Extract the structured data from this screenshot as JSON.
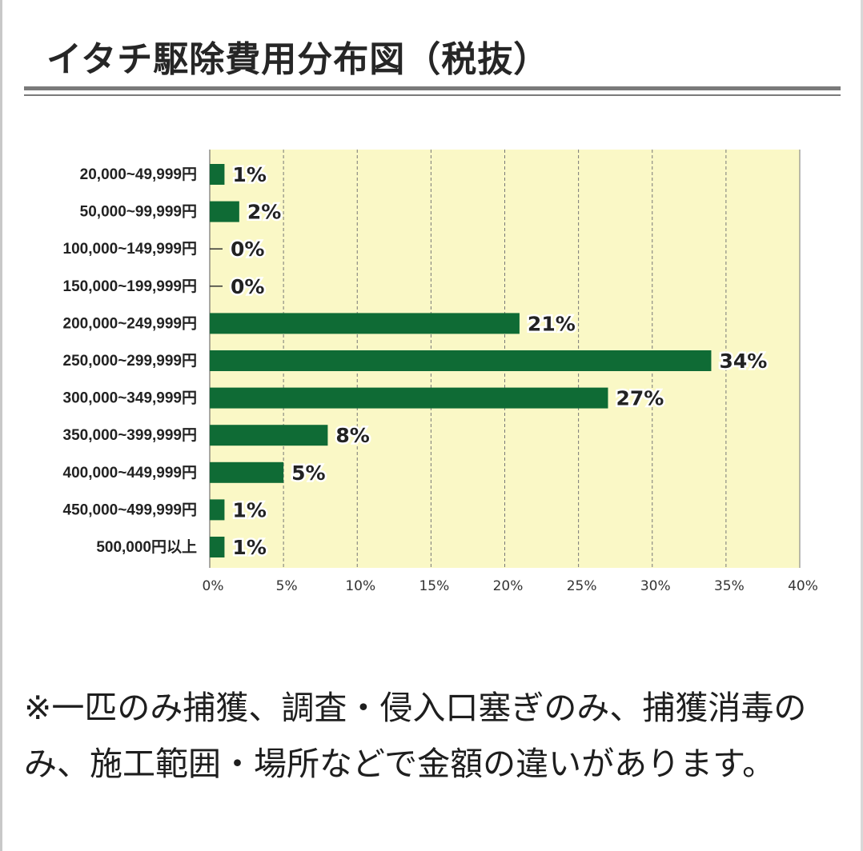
{
  "title": "イタチ駆除費用分布図（税抜）",
  "note": "※一匹のみ捕獲、調査・侵入口塞ぎのみ、捕獲消毒のみ、施工範囲・場所などで金額の違いがあります。",
  "colors": {
    "bar": "#0f6b35",
    "plot_bg": "#faf8c6",
    "grid": "#777777"
  },
  "chart_data": {
    "type": "bar",
    "orientation": "horizontal",
    "title": "イタチ駆除費用分布図（税抜）",
    "categories": [
      "20,000~49,999円",
      "50,000~99,999円",
      "100,000~149,999円",
      "150,000~199,999円",
      "200,000~249,999円",
      "250,000~299,999円",
      "300,000~349,999円",
      "350,000~399,999円",
      "400,000~449,999円",
      "450,000~499,999円",
      "500,000円以上"
    ],
    "values": [
      1,
      2,
      0,
      0,
      21,
      34,
      27,
      8,
      5,
      1,
      1
    ],
    "value_labels": [
      "1%",
      "2%",
      "0%",
      "0%",
      "21%",
      "34%",
      "27%",
      "8%",
      "5%",
      "1%",
      "1%"
    ],
    "unit": "%",
    "xlim": [
      0,
      40
    ],
    "xticks": [
      "0%",
      "5%",
      "10%",
      "15%",
      "20%",
      "25%",
      "30%",
      "35%",
      "40%"
    ],
    "grid": "vertical dashed"
  }
}
